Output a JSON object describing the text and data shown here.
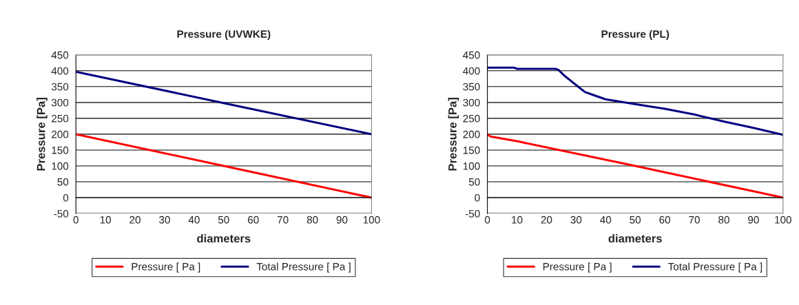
{
  "chart_data": [
    {
      "type": "line",
      "title": "Pressure (UVWKE)",
      "xlabel": "diameters",
      "ylabel": "Pressure [Pa]",
      "xlim": [
        0,
        100
      ],
      "xticks": [
        0,
        10,
        20,
        30,
        40,
        50,
        60,
        70,
        80,
        90,
        100
      ],
      "ylim": [
        -50,
        450
      ],
      "yticks": [
        -50,
        0,
        50,
        100,
        150,
        200,
        250,
        300,
        350,
        400,
        450
      ],
      "grid": "y",
      "legend": "bottom",
      "marker": "none",
      "line_style": "solid",
      "series": [
        {
          "name": "Pressure [ Pa ]",
          "color": "#ff0000",
          "x": [
            0,
            50,
            100
          ],
          "values": [
            200,
            100,
            0
          ]
        },
        {
          "name": "Total Pressure [ Pa ]",
          "color": "#000080",
          "x": [
            0,
            50,
            100
          ],
          "values": [
            397,
            298,
            200
          ]
        }
      ]
    },
    {
      "type": "line",
      "title": "Pressure (PL)",
      "xlabel": "diameters",
      "ylabel": "Pressure [Pa]",
      "xlim": [
        0,
        100
      ],
      "xticks": [
        0,
        10,
        20,
        30,
        40,
        50,
        60,
        70,
        80,
        90,
        100
      ],
      "ylim": [
        -50,
        450
      ],
      "yticks": [
        -50,
        0,
        50,
        100,
        150,
        200,
        250,
        300,
        350,
        400,
        450
      ],
      "grid": "y",
      "legend": "bottom",
      "marker": "none",
      "line_style": "solid",
      "series": [
        {
          "name": "Pressure [ Pa ]",
          "color": "#ff0000",
          "x": [
            0,
            1,
            10,
            50,
            100
          ],
          "values": [
            200,
            193,
            178,
            100,
            0
          ]
        },
        {
          "name": "Total Pressure [ Pa ]",
          "color": "#000080",
          "x": [
            0,
            9,
            10,
            23,
            24,
            26,
            28,
            30,
            33,
            36,
            40,
            50,
            60,
            70,
            80,
            90,
            100
          ],
          "values": [
            410,
            410,
            406,
            406,
            403,
            385,
            370,
            355,
            333,
            323,
            310,
            295,
            280,
            262,
            240,
            220,
            198
          ]
        }
      ]
    }
  ]
}
